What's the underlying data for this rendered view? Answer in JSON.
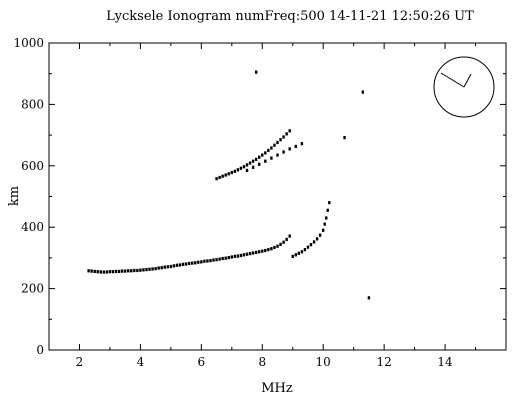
{
  "chart_data": {
    "type": "scatter",
    "title": "Lycksele Ionogram   numFreq:500   14-11-21 12:50:26 UT",
    "xlabel": "MHz",
    "ylabel": "km",
    "xlim": [
      1.0,
      16.0
    ],
    "ylim": [
      0,
      1000
    ],
    "x_ticks": [
      2,
      4,
      6,
      8,
      10,
      12,
      14
    ],
    "y_ticks": [
      0,
      200,
      400,
      600,
      800,
      1000
    ],
    "grid": false,
    "series": [
      {
        "x": [
          2.3,
          2.4,
          2.5,
          2.6,
          2.7,
          2.8,
          2.9,
          3.0,
          3.1,
          3.2,
          3.3,
          3.4,
          3.5,
          3.6,
          3.7,
          3.8,
          3.9,
          4.0,
          4.1,
          4.2,
          4.3,
          4.4,
          4.5,
          4.6,
          4.7,
          4.8,
          4.9,
          5.0,
          5.1,
          5.2,
          5.3,
          5.4,
          5.5,
          5.6,
          5.7,
          5.8,
          5.9,
          6.0,
          6.1,
          6.2,
          6.3,
          6.4,
          6.5,
          6.6,
          6.7,
          6.8,
          6.9,
          7.0,
          7.1,
          7.2,
          7.3,
          7.4,
          7.5,
          7.6,
          7.7,
          7.8,
          7.9,
          8.0,
          8.1,
          8.2,
          8.3,
          8.4,
          8.5,
          8.6,
          8.7,
          8.8,
          8.9,
          9.0,
          9.1,
          9.2,
          9.3,
          9.4,
          9.5,
          9.6,
          9.7,
          9.8,
          9.9,
          10.0,
          10.05,
          10.1,
          10.15,
          10.2
        ],
        "y": [
          258,
          257,
          256,
          255,
          254,
          254,
          254,
          255,
          255,
          256,
          256,
          257,
          257,
          258,
          258,
          259,
          259,
          260,
          261,
          262,
          263,
          264,
          265,
          267,
          268,
          270,
          271,
          272,
          274,
          276,
          277,
          279,
          280,
          282,
          283,
          284,
          286,
          287,
          289,
          290,
          291,
          293,
          294,
          296,
          298,
          299,
          301,
          303,
          305,
          306,
          308,
          310,
          312,
          314,
          316,
          318,
          320,
          322,
          324,
          327,
          330,
          334,
          338,
          344,
          351,
          360,
          371,
          305,
          310,
          315,
          320,
          327,
          335,
          343,
          352,
          362,
          374,
          390,
          410,
          430,
          455,
          480
        ]
      },
      {
        "x": [
          6.5,
          6.6,
          6.7,
          6.8,
          6.9,
          7.0,
          7.1,
          7.2,
          7.3,
          7.4,
          7.5,
          7.6,
          7.7,
          7.8,
          7.9,
          8.0,
          8.1,
          8.2,
          8.3,
          8.4,
          8.5,
          8.6,
          8.7,
          8.8,
          8.9,
          7.5,
          7.7,
          7.9,
          8.1,
          8.3,
          8.5,
          8.7,
          8.9,
          9.1,
          9.3
        ],
        "y": [
          558,
          562,
          566,
          570,
          574,
          578,
          582,
          587,
          592,
          597,
          603,
          609,
          615,
          621,
          628,
          635,
          642,
          650,
          658,
          667,
          676,
          685,
          694,
          704,
          714,
          585,
          595,
          605,
          615,
          625,
          635,
          645,
          655,
          663,
          672
        ]
      },
      {
        "x": [
          7.8,
          10.7,
          11.3,
          11.5
        ],
        "y": [
          905,
          692,
          840,
          170
        ]
      }
    ],
    "annotations": []
  }
}
